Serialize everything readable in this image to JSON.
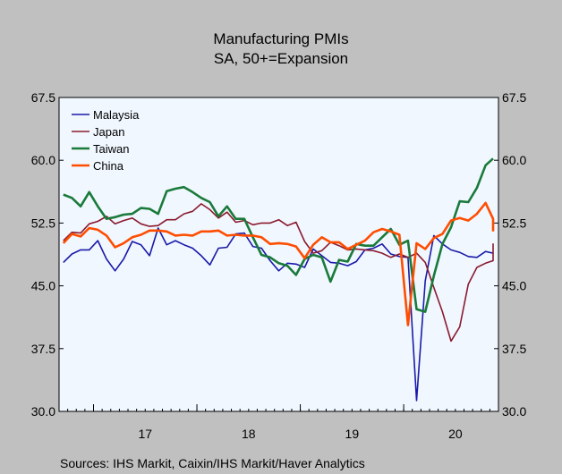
{
  "chart_data": {
    "type": "line",
    "title": "Manufacturing PMIs",
    "subtitle": "SA, 50+=Expansion",
    "source": "Sources:  IHS Markit, Caixin/IHS Markit/Haver Analytics",
    "ylim": [
      30.0,
      67.5
    ],
    "yticks": [
      "30.0",
      "37.5",
      "45.0",
      "52.5",
      "60.0",
      "67.5"
    ],
    "yticks_right": [
      "30.0",
      "37.5",
      "45.0",
      "52.5",
      "60.0",
      "67.5"
    ],
    "x_labels": [
      "17",
      "18",
      "19",
      "20"
    ],
    "x_start": "2016-09",
    "legend_position": "top-left",
    "grid": false,
    "series": [
      {
        "name": "Malaysia",
        "color": "#1a1aa8",
        "values": [
          47.8,
          48.8,
          49.3,
          49.3,
          50.4,
          48.2,
          46.8,
          48.2,
          50.3,
          49.9,
          48.6,
          51.9,
          49.9,
          50.4,
          49.9,
          49.5,
          48.6,
          47.5,
          49.5,
          49.6,
          51.2,
          51.3,
          49.7,
          49.5,
          48.0,
          46.8,
          47.7,
          47.6,
          47.2,
          49.4,
          48.6,
          47.8,
          47.7,
          47.4,
          47.9,
          49.3,
          49.5,
          50.0,
          48.8,
          48.5,
          48.4,
          31.3,
          45.6,
          51.0,
          50.0,
          49.3,
          49.0,
          48.5,
          48.4,
          49.1,
          48.9
        ]
      },
      {
        "name": "Japan",
        "color": "#8b1a2e",
        "values": [
          50.4,
          51.4,
          51.3,
          52.4,
          52.7,
          53.3,
          52.4,
          52.8,
          53.1,
          52.4,
          52.1,
          52.2,
          52.9,
          52.9,
          53.6,
          53.9,
          54.8,
          54.1,
          53.1,
          53.8,
          52.6,
          52.8,
          52.3,
          52.5,
          52.5,
          52.9,
          52.2,
          52.6,
          50.3,
          48.9,
          49.2,
          50.2,
          49.8,
          49.3,
          49.4,
          49.3,
          49.2,
          48.9,
          48.4,
          48.8,
          48.4,
          48.9,
          47.8,
          44.8,
          41.9,
          38.4,
          40.1,
          45.2,
          47.2,
          47.7,
          48.0,
          48.7,
          49.0,
          50.0,
          49.8
        ]
      },
      {
        "name": "Taiwan",
        "color": "#1a7a3a",
        "values": [
          55.9,
          55.5,
          54.5,
          56.2,
          54.5,
          53.0,
          53.2,
          53.5,
          53.6,
          54.3,
          54.2,
          53.6,
          56.3,
          56.6,
          56.8,
          56.2,
          55.5,
          55.0,
          53.3,
          54.5,
          53.0,
          53.0,
          50.8,
          48.7,
          48.4,
          47.7,
          47.4,
          46.3,
          48.2,
          48.7,
          48.4,
          45.5,
          48.1,
          47.9,
          50.0,
          49.8,
          49.8,
          50.8,
          51.8,
          49.9,
          50.4,
          42.2,
          41.9,
          46.2,
          50.0,
          52.0,
          55.1,
          55.0,
          56.7,
          59.4,
          60.2
        ]
      },
      {
        "name": "China",
        "color": "#ff4d00",
        "values": [
          50.1,
          51.2,
          50.9,
          51.9,
          51.7,
          51.0,
          49.6,
          50.1,
          50.8,
          51.1,
          51.6,
          51.6,
          51.5,
          51.0,
          51.1,
          51.0,
          51.5,
          51.5,
          51.6,
          51.0,
          51.1,
          51.0,
          51.0,
          50.8,
          50.0,
          50.1,
          50.0,
          49.7,
          48.3,
          49.9,
          50.8,
          50.2,
          50.2,
          49.4,
          49.9,
          50.4,
          51.4,
          51.8,
          51.5,
          51.1,
          40.3,
          50.1,
          49.4,
          50.7,
          51.2,
          52.8,
          53.1,
          52.8,
          53.6,
          54.9,
          53.0,
          51.5
        ]
      }
    ]
  }
}
